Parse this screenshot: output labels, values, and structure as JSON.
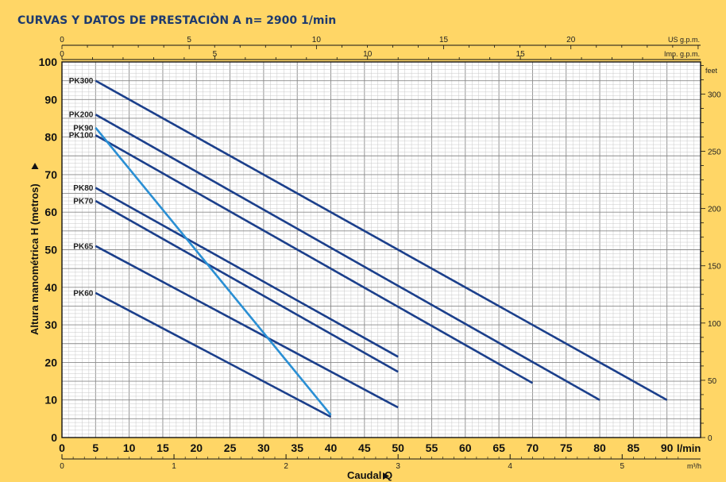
{
  "chart_data": {
    "type": "line",
    "title": "CURVAS Y DATOS DE PRESTACIÒN A n= 2900  1/min",
    "xlabel": "Caudal  Q",
    "ylabel": "Altura manométrica  H  (metros)",
    "x_unit": "l/min",
    "x_secondary_unit": "m³/h",
    "y_secondary_unit": "feet",
    "us_unit": "US g.p.m.",
    "imp_unit": "Imp. g.p.m.",
    "xlim": [
      0,
      95
    ],
    "ylim": [
      0,
      100
    ],
    "x_ticks": [
      "0",
      "5",
      "10",
      "15",
      "20",
      "25",
      "30",
      "35",
      "40",
      "45",
      "50",
      "55",
      "60",
      "65",
      "70",
      "75",
      "80",
      "85",
      "90"
    ],
    "x_tick_values": [
      0,
      5,
      10,
      15,
      20,
      25,
      30,
      35,
      40,
      45,
      50,
      55,
      60,
      65,
      70,
      75,
      80,
      85,
      90
    ],
    "y_ticks": [
      "0",
      "10",
      "20",
      "30",
      "40",
      "50",
      "60",
      "70",
      "80",
      "90",
      "100"
    ],
    "y_tick_values": [
      0,
      10,
      20,
      30,
      40,
      50,
      60,
      70,
      80,
      90,
      100
    ],
    "m3h_ticks": [
      "0",
      "1",
      "2",
      "3",
      "4",
      "5"
    ],
    "m3h_values": [
      0,
      1,
      2,
      3,
      4,
      5
    ],
    "feet_ticks": [
      "0",
      "50",
      "100",
      "150",
      "200",
      "250",
      "300"
    ],
    "feet_values": [
      0,
      50,
      100,
      150,
      200,
      250,
      300
    ],
    "us_ticks": [
      "0",
      "5",
      "10",
      "15",
      "20"
    ],
    "us_values": [
      0,
      5,
      10,
      15,
      20
    ],
    "imp_ticks": [
      "0",
      "5",
      "10",
      "15"
    ],
    "imp_values": [
      0,
      5,
      10,
      15
    ],
    "series": [
      {
        "name": "PK300",
        "x": [
          5,
          90
        ],
        "y": [
          95,
          10
        ]
      },
      {
        "name": "PK200",
        "x": [
          5,
          80
        ],
        "y": [
          86,
          10
        ]
      },
      {
        "name": "PK100",
        "x": [
          5,
          70
        ],
        "y": [
          80.5,
          14.5
        ]
      },
      {
        "name": "PK80",
        "x": [
          5,
          50
        ],
        "y": [
          66.5,
          21.5
        ]
      },
      {
        "name": "PK70",
        "x": [
          5,
          50
        ],
        "y": [
          63,
          17.5
        ]
      },
      {
        "name": "PK65",
        "x": [
          5,
          50
        ],
        "y": [
          51,
          8
        ]
      },
      {
        "name": "PK60",
        "x": [
          5,
          40
        ],
        "y": [
          38.5,
          5.5
        ]
      },
      {
        "name": "PK90",
        "x": [
          5,
          40
        ],
        "y": [
          82.5,
          6
        ],
        "color": "#2a8fd4"
      }
    ],
    "line_color": "#1b3f8b",
    "grid": true
  }
}
